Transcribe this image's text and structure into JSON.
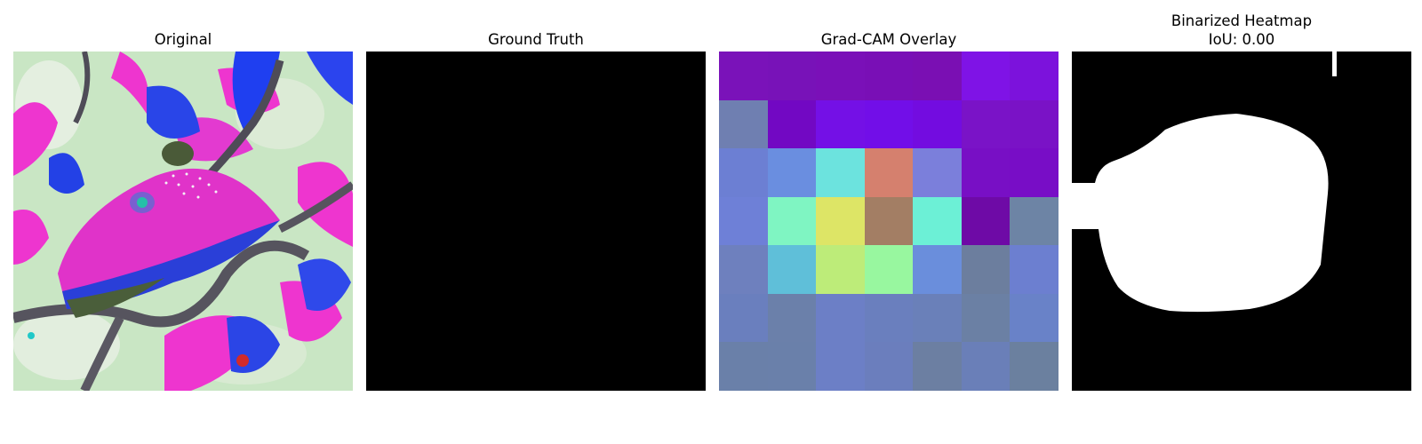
{
  "figure": {
    "panels": [
      {
        "title": "Original"
      },
      {
        "title": "Ground Truth"
      },
      {
        "title": "Grad-CAM Overlay"
      },
      {
        "title": "Binarized Heatmap",
        "subtitle": "IoU: 0.00"
      }
    ],
    "gradcam_grid_colors": [
      [
        "#7a12b9",
        "#7812b8",
        "#7a10b8",
        "#790fb6",
        "#7a0fb3",
        "#7f13e6",
        "#7c12dc"
      ],
      [
        "#6f7fb1",
        "#7208c3",
        "#7410e6",
        "#720ee8",
        "#730ce0",
        "#7a13c7",
        "#7a12c6"
      ],
      [
        "#6c7fd3",
        "#6a8ee0",
        "#6ce3de",
        "#d5806e",
        "#7b7fdb",
        "#780fc5",
        "#780dc6"
      ],
      [
        "#6e80d7",
        "#7ff5c2",
        "#dde566",
        "#a37e64",
        "#6cf0d6",
        "#6e0aa6",
        "#6d84a5"
      ],
      [
        "#6e80be",
        "#5fbfd9",
        "#bdec79",
        "#98f79f",
        "#6a8edc",
        "#6c7e9e",
        "#6c7fd0"
      ],
      [
        "#6a7fbe",
        "#6b80aa",
        "#6c7fc6",
        "#6a7fbe",
        "#6a80b9",
        "#6b80a4",
        "#6982c8"
      ],
      [
        "#6a80a9",
        "#6a80aa",
        "#6c7fc6",
        "#6b7ebd",
        "#6c7fa2",
        "#6a7fb8",
        "#6b809f"
      ]
    ]
  }
}
